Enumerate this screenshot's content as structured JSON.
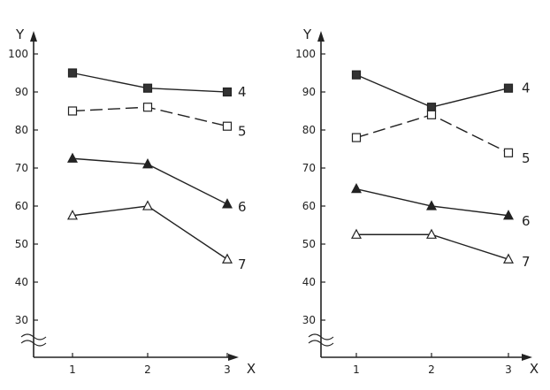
{
  "chart_data": [
    {
      "type": "line",
      "ylabel": "Y",
      "xlabel": "X",
      "x": [
        1,
        2,
        3
      ],
      "xticks": [
        1,
        2,
        3
      ],
      "yticks": [
        30,
        40,
        50,
        60,
        70,
        80,
        90,
        100
      ],
      "ylim": [
        30,
        100
      ],
      "axis_break": true,
      "series": [
        {
          "name": "4",
          "marker": "square-filled",
          "dash": false,
          "values": [
            95,
            91,
            90
          ]
        },
        {
          "name": "5",
          "marker": "square-open",
          "dash": true,
          "values": [
            85,
            86,
            81
          ]
        },
        {
          "name": "6",
          "marker": "triangle-filled",
          "dash": false,
          "values": [
            72.5,
            71,
            60.5
          ]
        },
        {
          "name": "7",
          "marker": "triangle-open",
          "dash": false,
          "values": [
            57.5,
            60,
            46
          ]
        }
      ]
    },
    {
      "type": "line",
      "ylabel": "Y",
      "xlabel": "X",
      "x": [
        1,
        2,
        3
      ],
      "xticks": [
        1,
        2,
        3
      ],
      "yticks": [
        30,
        40,
        50,
        60,
        70,
        80,
        90,
        100
      ],
      "ylim": [
        30,
        100
      ],
      "axis_break": true,
      "series": [
        {
          "name": "4",
          "marker": "square-filled",
          "dash": false,
          "values": [
            94.5,
            86,
            91
          ]
        },
        {
          "name": "5",
          "marker": "square-open",
          "dash": true,
          "values": [
            78,
            84,
            74
          ]
        },
        {
          "name": "6",
          "marker": "triangle-filled",
          "dash": false,
          "values": [
            64.5,
            60,
            57.5
          ]
        },
        {
          "name": "7",
          "marker": "triangle-open",
          "dash": false,
          "values": [
            52.5,
            52.5,
            46
          ]
        }
      ]
    }
  ]
}
